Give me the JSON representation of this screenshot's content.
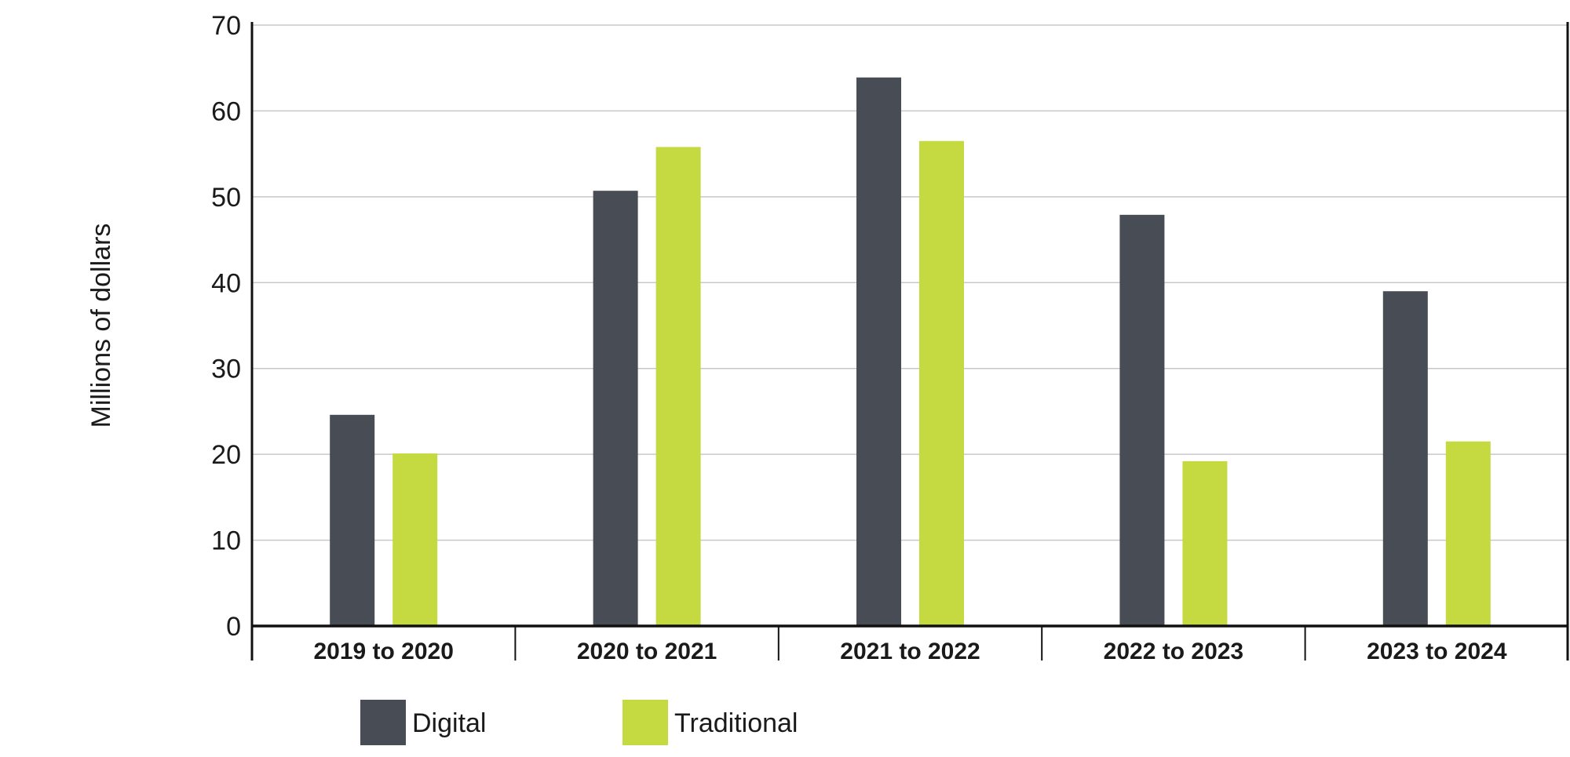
{
  "chart_data": {
    "type": "bar",
    "title": "",
    "xlabel": "",
    "ylabel": "Millions of dollars",
    "ylim": [
      0,
      70
    ],
    "yticks": [
      0,
      10,
      20,
      30,
      40,
      50,
      60,
      70
    ],
    "grid": true,
    "legend_position": "bottom-left",
    "categories": [
      "2019 to 2020",
      "2020 to 2021",
      "2021 to 2022",
      "2022 to 2023",
      "2023 to 2024"
    ],
    "series": [
      {
        "name": "Digital",
        "color": "#474c55",
        "values": [
          24.6,
          50.7,
          63.9,
          47.9,
          39.0
        ]
      },
      {
        "name": "Traditional",
        "color": "#c4da40",
        "values": [
          20.1,
          55.8,
          56.5,
          19.2,
          21.5
        ]
      }
    ]
  }
}
